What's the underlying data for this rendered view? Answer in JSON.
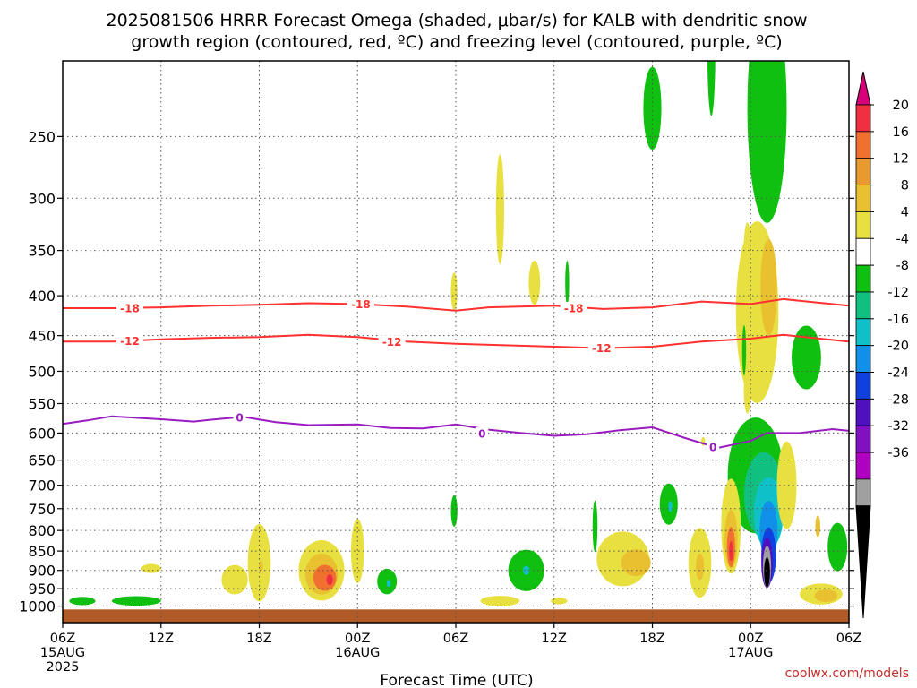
{
  "title": {
    "line1": "2025081506 HRRR Forecast Omega (shaded, μbar/s) for KALB with dendritic snow",
    "line2": "growth region (contoured, red, ºC) and freezing level (contoured, purple, ºC)"
  },
  "credit": "coolwx.com/models",
  "chart_data": {
    "type": "heatmap",
    "xlabel": "Forecast Time (UTC)",
    "ylabel": "",
    "x_range_hours": [
      0,
      48
    ],
    "y_scale": "log-pressure",
    "y_range_hPa": [
      1050,
      200
    ],
    "grid": true,
    "y_ticks": [
      250,
      300,
      350,
      400,
      450,
      500,
      550,
      600,
      650,
      700,
      750,
      800,
      850,
      900,
      950,
      1000
    ],
    "x_ticks": [
      {
        "hour": 0,
        "label": "06Z",
        "date": "15AUG",
        "year": "2025"
      },
      {
        "hour": 6,
        "label": "12Z"
      },
      {
        "hour": 12,
        "label": "18Z"
      },
      {
        "hour": 18,
        "label": "00Z",
        "date": "16AUG"
      },
      {
        "hour": 24,
        "label": "06Z"
      },
      {
        "hour": 30,
        "label": "12Z"
      },
      {
        "hour": 36,
        "label": "18Z"
      },
      {
        "hour": 42,
        "label": "00Z",
        "date": "17AUG"
      },
      {
        "hour": 48,
        "label": "06Z"
      }
    ],
    "colorbar": {
      "labels": [
        20,
        16,
        12,
        8,
        4,
        -4,
        -8,
        -12,
        -16,
        -20,
        -24,
        -28,
        -32,
        -36
      ],
      "colors": [
        "#d8007a",
        "#f03040",
        "#f07030",
        "#e89a30",
        "#e8c030",
        "#e8e040",
        "#ffffff",
        "#10c010",
        "#10c080",
        "#10c0c8",
        "#1090e8",
        "#1040e0",
        "#5010c0",
        "#8010c0",
        "#b000c0",
        "#a0a0a0",
        "#000000"
      ]
    },
    "contours": [
      {
        "kind": "dendritic",
        "value": -18,
        "color": "#ff3030",
        "points": [
          [
            0,
            415
          ],
          [
            3,
            415
          ],
          [
            6,
            414
          ],
          [
            9,
            412
          ],
          [
            12,
            411
          ],
          [
            15,
            409
          ],
          [
            18,
            410
          ],
          [
            21,
            413
          ],
          [
            24,
            418
          ],
          [
            26,
            414
          ],
          [
            30,
            412
          ],
          [
            33,
            416
          ],
          [
            36,
            414
          ],
          [
            39,
            407
          ],
          [
            42,
            410
          ],
          [
            44,
            404
          ],
          [
            48,
            412
          ]
        ]
      },
      {
        "kind": "dendritic",
        "value": -12,
        "color": "#ff3030",
        "points": [
          [
            0,
            458
          ],
          [
            3,
            458
          ],
          [
            6,
            455
          ],
          [
            9,
            453
          ],
          [
            12,
            452
          ],
          [
            15,
            449
          ],
          [
            18,
            452
          ],
          [
            21,
            458
          ],
          [
            24,
            461
          ],
          [
            27,
            463
          ],
          [
            30,
            465
          ],
          [
            33,
            467
          ],
          [
            36,
            465
          ],
          [
            39,
            458
          ],
          [
            42,
            454
          ],
          [
            44,
            449
          ],
          [
            48,
            458
          ]
        ]
      },
      {
        "kind": "freezing",
        "value": 0,
        "color": "#9a1bc0",
        "points": [
          [
            0,
            584
          ],
          [
            1.5,
            578
          ],
          [
            3,
            571
          ],
          [
            6,
            576
          ],
          [
            8,
            580
          ],
          [
            9,
            577
          ],
          [
            11,
            572
          ],
          [
            13,
            581
          ],
          [
            15,
            586
          ],
          [
            18,
            585
          ],
          [
            20,
            591
          ],
          [
            22,
            592
          ],
          [
            24,
            585
          ],
          [
            26,
            594
          ],
          [
            28,
            600
          ],
          [
            30,
            605
          ],
          [
            32,
            602
          ],
          [
            34,
            595
          ],
          [
            36,
            590
          ],
          [
            38,
            609
          ],
          [
            40,
            627
          ],
          [
            42,
            614
          ],
          [
            43,
            600
          ],
          [
            45,
            600
          ],
          [
            47,
            593
          ],
          [
            48,
            596
          ]
        ]
      }
    ],
    "contour_labels": [
      {
        "text": "-18",
        "x": 4.1,
        "p": 415,
        "color": "#ff3030"
      },
      {
        "text": "-18",
        "x": 18.2,
        "p": 410,
        "color": "#ff3030"
      },
      {
        "text": "-18",
        "x": 31.2,
        "p": 415,
        "color": "#ff3030"
      },
      {
        "text": "-12",
        "x": 4.1,
        "p": 457,
        "color": "#ff3030"
      },
      {
        "text": "-12",
        "x": 20.1,
        "p": 458,
        "color": "#ff3030"
      },
      {
        "text": "-12",
        "x": 32.9,
        "p": 467,
        "color": "#ff3030"
      },
      {
        "text": "0",
        "x": 10.8,
        "p": 573,
        "color": "#9a1bc0"
      },
      {
        "text": "0",
        "x": 25.6,
        "p": 601,
        "color": "#9a1bc0"
      },
      {
        "text": "0",
        "x": 39.7,
        "p": 625,
        "color": "#9a1bc0"
      }
    ],
    "shaded_regions": [
      {
        "color": "#10c010",
        "x": 36.0,
        "p": 230,
        "rx": 0.55,
        "rp": 28
      },
      {
        "color": "#10c010",
        "x": 39.6,
        "p": 190,
        "rx": 0.25,
        "rp": 40
      },
      {
        "color": "#10c010",
        "x": 43.0,
        "p": 230,
        "rx": 1.2,
        "rp": 75
      },
      {
        "color": "#10c010",
        "x": 45.4,
        "p": 480,
        "rx": 0.9,
        "rp": 45
      },
      {
        "color": "#e8e040",
        "x": 26.7,
        "p": 310,
        "rx": 0.25,
        "rp": 50
      },
      {
        "color": "#e8e040",
        "x": 23.9,
        "p": 395,
        "rx": 0.2,
        "rp": 22
      },
      {
        "color": "#e8e040",
        "x": 28.8,
        "p": 385,
        "rx": 0.35,
        "rp": 25
      },
      {
        "color": "#10c010",
        "x": 30.8,
        "p": 385,
        "rx": 0.12,
        "rp": 25
      },
      {
        "color": "#e8e040",
        "x": 42.4,
        "p": 420,
        "rx": 1.3,
        "rp": 110
      },
      {
        "color": "#e8e040",
        "x": 41.8,
        "p": 360,
        "rx": 0.25,
        "rp": 40
      },
      {
        "color": "#e8c030",
        "x": 43.1,
        "p": 390,
        "rx": 0.5,
        "rp": 55
      },
      {
        "color": "#10c010",
        "x": 41.6,
        "p": 470,
        "rx": 0.12,
        "rp": 35
      },
      {
        "color": "#e8e040",
        "x": 41.8,
        "p": 530,
        "rx": 0.22,
        "rp": 35
      },
      {
        "color": "#10c010",
        "x": 42.3,
        "p": 680,
        "rx": 1.7,
        "rp": 115
      },
      {
        "color": "#10c080",
        "x": 42.8,
        "p": 720,
        "rx": 1.2,
        "rp": 90
      },
      {
        "color": "#10c0c8",
        "x": 43.1,
        "p": 760,
        "rx": 0.9,
        "rp": 80
      },
      {
        "color": "#1090e8",
        "x": 43.1,
        "p": 800,
        "rx": 0.55,
        "rp": 70
      },
      {
        "color": "#1040e0",
        "x": 43.1,
        "p": 860,
        "rx": 0.45,
        "rp": 70
      },
      {
        "color": "#5010c0",
        "x": 43.0,
        "p": 880,
        "rx": 0.35,
        "rp": 65
      },
      {
        "color": "#a0a0a0",
        "x": 43.0,
        "p": 890,
        "rx": 0.25,
        "rp": 55
      },
      {
        "color": "#000000",
        "x": 43.0,
        "p": 905,
        "rx": 0.18,
        "rp": 40
      },
      {
        "color": "#e8e040",
        "x": 44.2,
        "p": 700,
        "rx": 0.6,
        "rp": 90
      },
      {
        "color": "#e8c030",
        "x": 46.1,
        "p": 790,
        "rx": 0.15,
        "rp": 25
      },
      {
        "color": "#10c010",
        "x": 47.3,
        "p": 840,
        "rx": 0.6,
        "rp": 60
      },
      {
        "color": "#e8e040",
        "x": 40.8,
        "p": 790,
        "rx": 0.6,
        "rp": 110
      },
      {
        "color": "#e8c030",
        "x": 40.8,
        "p": 820,
        "rx": 0.4,
        "rp": 70
      },
      {
        "color": "#f07030",
        "x": 40.8,
        "p": 840,
        "rx": 0.25,
        "rp": 50
      },
      {
        "color": "#f03040",
        "x": 40.8,
        "p": 850,
        "rx": 0.12,
        "rp": 25
      },
      {
        "color": "#10c010",
        "x": 37.0,
        "p": 740,
        "rx": 0.55,
        "rp": 45
      },
      {
        "color": "#10c0c8",
        "x": 37.1,
        "p": 745,
        "rx": 0.12,
        "rp": 12
      },
      {
        "color": "#e8e040",
        "x": 34.2,
        "p": 870,
        "rx": 1.6,
        "rp": 70
      },
      {
        "color": "#e8c030",
        "x": 35.0,
        "p": 880,
        "rx": 0.9,
        "rp": 35
      },
      {
        "color": "#e8e040",
        "x": 38.9,
        "p": 880,
        "rx": 0.7,
        "rp": 90
      },
      {
        "color": "#e8c030",
        "x": 38.9,
        "p": 890,
        "rx": 0.25,
        "rp": 35
      },
      {
        "color": "#e8e040",
        "x": 46.3,
        "p": 965,
        "rx": 1.3,
        "rp": 30
      },
      {
        "color": "#e8c030",
        "x": 46.6,
        "p": 970,
        "rx": 0.7,
        "rp": 18
      },
      {
        "color": "#10c010",
        "x": 32.5,
        "p": 790,
        "rx": 0.15,
        "rp": 60
      },
      {
        "color": "#e8e040",
        "x": 39.1,
        "p": 615,
        "rx": 0.12,
        "rp": 8
      },
      {
        "color": "#10c010",
        "x": 28.3,
        "p": 900,
        "rx": 1.1,
        "rp": 55
      },
      {
        "color": "#10c0c8",
        "x": 28.3,
        "p": 900,
        "rx": 0.2,
        "rp": 12
      },
      {
        "color": "#e8e040",
        "x": 26.7,
        "p": 985,
        "rx": 1.2,
        "rp": 15
      },
      {
        "color": "#e8e040",
        "x": 30.3,
        "p": 985,
        "rx": 0.5,
        "rp": 10
      },
      {
        "color": "#10c010",
        "x": 23.9,
        "p": 755,
        "rx": 0.2,
        "rp": 35
      },
      {
        "color": "#10c010",
        "x": 19.8,
        "p": 930,
        "rx": 0.6,
        "rp": 35
      },
      {
        "color": "#10c0c8",
        "x": 19.9,
        "p": 935,
        "rx": 0.12,
        "rp": 10
      },
      {
        "color": "#e8e040",
        "x": 15.8,
        "p": 900,
        "rx": 1.4,
        "rp": 80
      },
      {
        "color": "#e8c030",
        "x": 15.8,
        "p": 910,
        "rx": 1.0,
        "rp": 55
      },
      {
        "color": "#f07030",
        "x": 16.0,
        "p": 920,
        "rx": 0.7,
        "rp": 35
      },
      {
        "color": "#f03040",
        "x": 16.3,
        "p": 925,
        "rx": 0.2,
        "rp": 15
      },
      {
        "color": "#e8e040",
        "x": 12.0,
        "p": 880,
        "rx": 0.7,
        "rp": 100
      },
      {
        "color": "#e8c030",
        "x": 12.1,
        "p": 890,
        "rx": 0.12,
        "rp": 15
      },
      {
        "color": "#e8e040",
        "x": 10.5,
        "p": 925,
        "rx": 0.8,
        "rp": 40
      },
      {
        "color": "#e8e040",
        "x": 18.0,
        "p": 850,
        "rx": 0.4,
        "rp": 80
      },
      {
        "color": "#e8e040",
        "x": 5.4,
        "p": 895,
        "rx": 0.6,
        "rp": 12
      },
      {
        "color": "#10c010",
        "x": 1.2,
        "p": 985,
        "rx": 0.8,
        "rp": 12
      },
      {
        "color": "#10c010",
        "x": 4.5,
        "p": 985,
        "rx": 1.5,
        "rp": 14
      }
    ],
    "terrain": {
      "color": "#b05a28",
      "p_top": 1010,
      "p_bottom": 1050
    }
  }
}
